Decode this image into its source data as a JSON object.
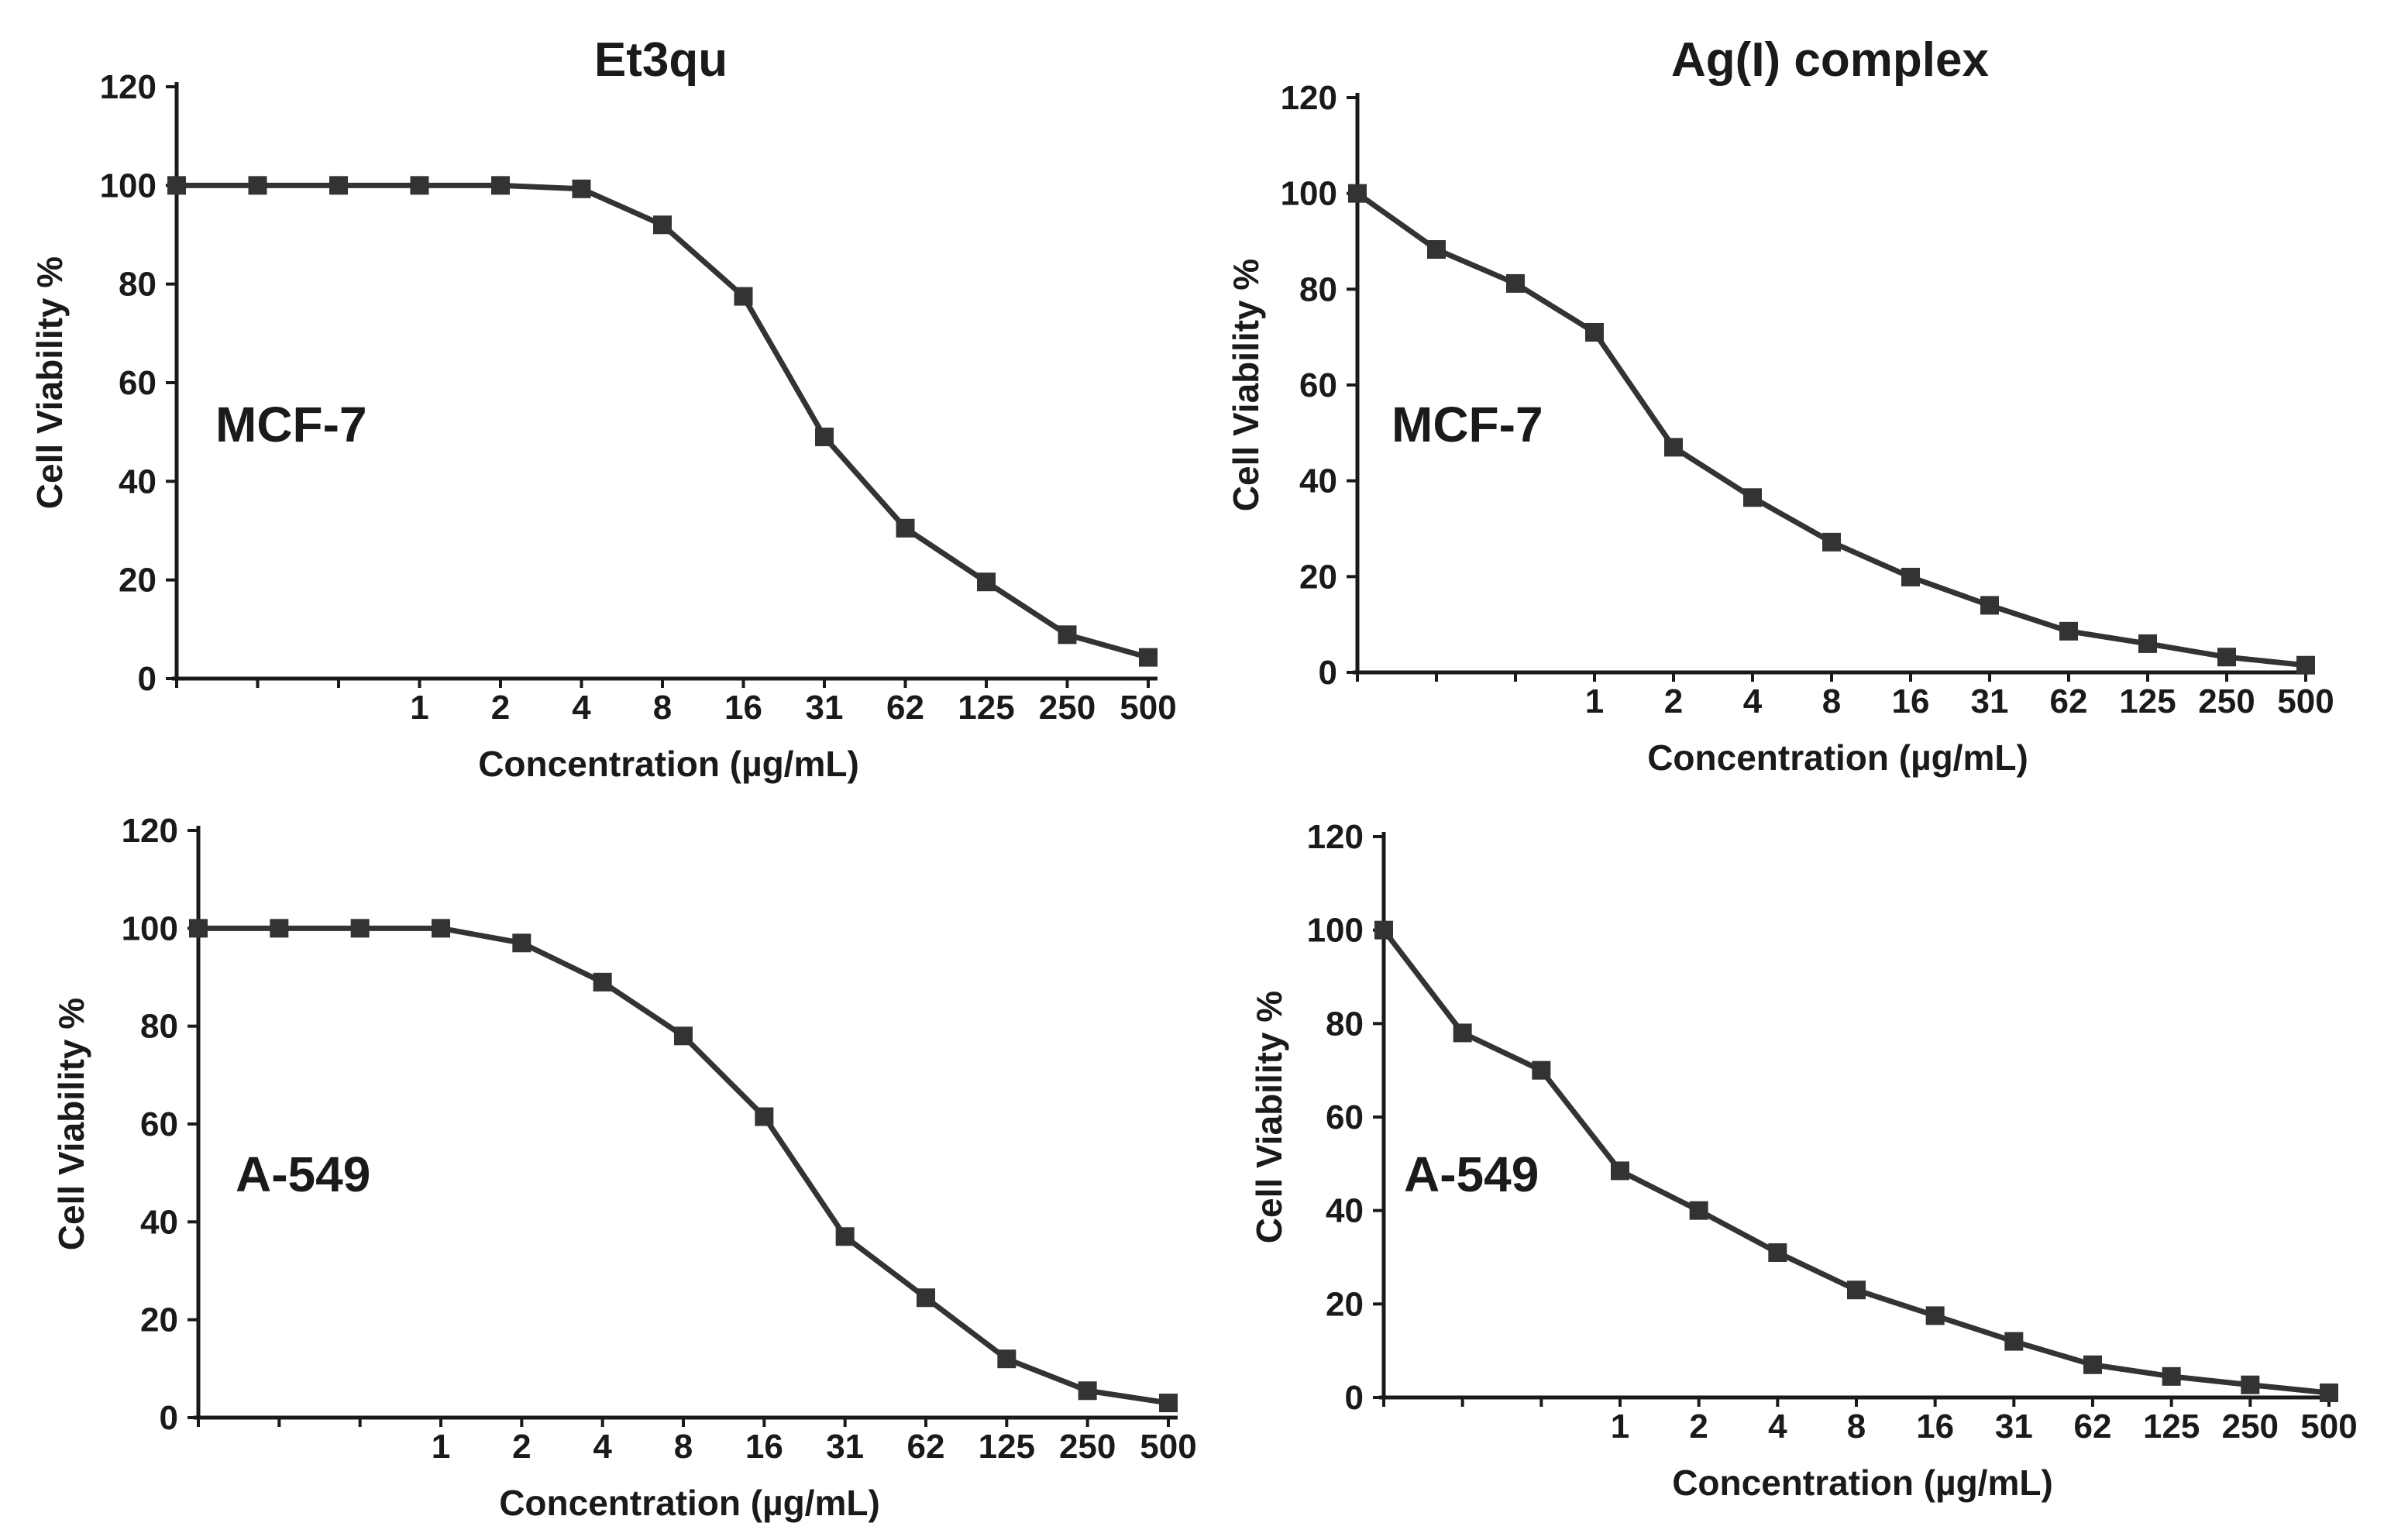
{
  "chart_data": [
    {
      "type": "line",
      "title": "Et3qu",
      "annotation": "MCF-7",
      "xlabel": "Concentration (µg/mL)",
      "ylabel": "Cell Viability %",
      "ylim": [
        0,
        120
      ],
      "yticks": [
        "0",
        "20",
        "40",
        "60",
        "80",
        "100",
        "120"
      ],
      "x_tick_labels": [
        "1",
        "2",
        "4",
        "8",
        "16",
        "31",
        "62",
        "125",
        "250",
        "500"
      ],
      "x_tick_index_start": 3,
      "series": [
        {
          "values": [
            100,
            100,
            100,
            100,
            100,
            99.3,
            92,
            77.5,
            49,
            30.5,
            19.6,
            8.9,
            4.3
          ]
        }
      ],
      "grid": false,
      "legend": "none",
      "color": "#333333"
    },
    {
      "type": "line",
      "title": "Ag(I) complex",
      "annotation": "MCF-7",
      "xlabel": "Concentration (µg/mL)",
      "ylabel": "Cell Viability %",
      "ylim": [
        0,
        120
      ],
      "yticks": [
        "0",
        "20",
        "40",
        "60",
        "80",
        "100",
        "120"
      ],
      "x_tick_labels": [
        "1",
        "2",
        "4",
        "8",
        "16",
        "31",
        "62",
        "125",
        "250",
        "500"
      ],
      "x_tick_index_start": 3,
      "series": [
        {
          "values": [
            100,
            88.3,
            81.2,
            71,
            47,
            36.5,
            27.2,
            19.9,
            14,
            8.6,
            6,
            3.2,
            1.5
          ]
        }
      ],
      "grid": false,
      "legend": "none",
      "color": "#333333"
    },
    {
      "type": "line",
      "title": "",
      "annotation": "A-549",
      "xlabel": "Concentration (µg/mL)",
      "ylabel": "Cell Viability %",
      "ylim": [
        0,
        120
      ],
      "yticks": [
        "0",
        "20",
        "40",
        "60",
        "80",
        "100",
        "120"
      ],
      "x_tick_labels": [
        "1",
        "2",
        "4",
        "8",
        "16",
        "31",
        "62",
        "125",
        "250",
        "500"
      ],
      "x_tick_index_start": 3,
      "series": [
        {
          "values": [
            100,
            100,
            100,
            100,
            97,
            89,
            78,
            61.5,
            37,
            24.5,
            12,
            5.5,
            3
          ]
        }
      ],
      "grid": false,
      "legend": "none",
      "color": "#333333"
    },
    {
      "type": "line",
      "title": "",
      "annotation": "A-549",
      "xlabel": "Concentration (µg/mL)",
      "ylabel": "Cell Viability %",
      "ylim": [
        0,
        120
      ],
      "yticks": [
        "0",
        "20",
        "40",
        "60",
        "80",
        "100",
        "120"
      ],
      "x_tick_labels": [
        "1",
        "2",
        "4",
        "8",
        "16",
        "31",
        "62",
        "125",
        "250",
        "500"
      ],
      "x_tick_index_start": 3,
      "series": [
        {
          "values": [
            100,
            78,
            70,
            48.5,
            40,
            31,
            23,
            17.5,
            12,
            7,
            4.5,
            2.7,
            1
          ]
        }
      ],
      "grid": false,
      "legend": "none",
      "color": "#333333"
    }
  ]
}
